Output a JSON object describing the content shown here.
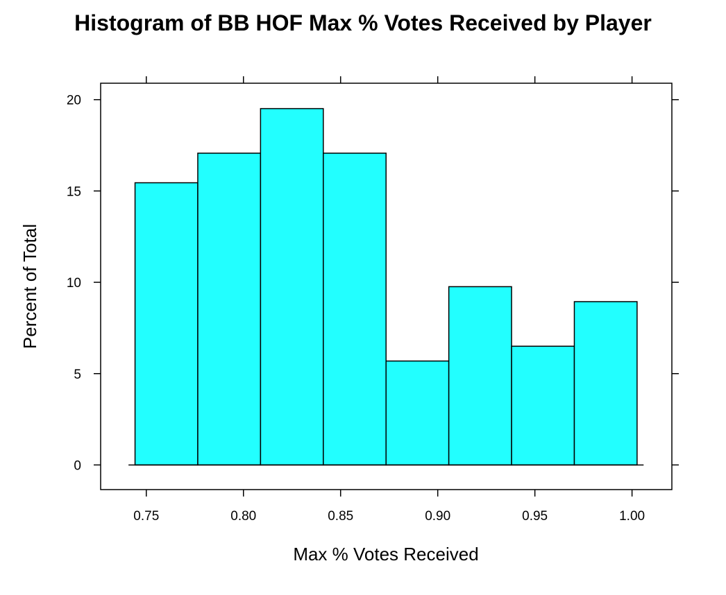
{
  "chart_data": {
    "type": "bar",
    "title": "Histogram of BB HOF Max % Votes Received by Player",
    "xlabel": "Max % Votes Received",
    "ylabel": "Percent of Total",
    "bin_edges": [
      0.7442,
      0.7765,
      0.8088,
      0.8411,
      0.8734,
      0.9057,
      0.938,
      0.9703,
      1.0026
    ],
    "values": [
      15.45,
      17.07,
      19.51,
      17.07,
      5.69,
      9.76,
      6.5,
      8.94
    ],
    "xlim": [
      0.7265,
      1.0205
    ],
    "ylim": [
      -1.35,
      20.9
    ],
    "x_ticks": [
      "0.75",
      "0.80",
      "0.85",
      "0.90",
      "0.95",
      "1.00"
    ],
    "y_ticks": [
      "0",
      "5",
      "10",
      "15",
      "20"
    ],
    "bar_color": "#22ffff",
    "grid": false,
    "legend": "none"
  }
}
